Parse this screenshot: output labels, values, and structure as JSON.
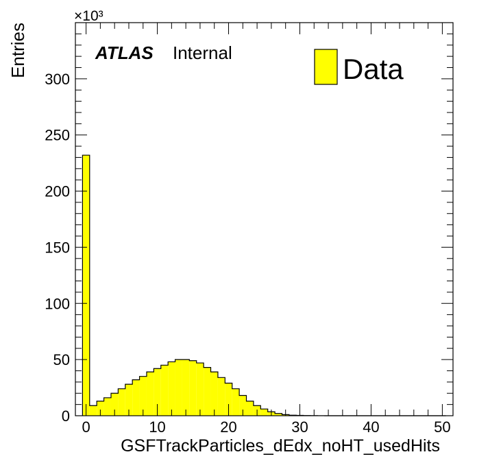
{
  "chart_data": {
    "type": "bar",
    "title": "",
    "xlabel": "GSFTrackParticles_dEdx_noHT_usedHits",
    "ylabel": "Entries",
    "y_multiplier": "×10³",
    "xlim": [
      -1.5,
      51.5
    ],
    "ylim": [
      0,
      350
    ],
    "x_ticks": [
      "0",
      "10",
      "20",
      "30",
      "40",
      "50"
    ],
    "y_ticks": [
      "0",
      "50",
      "100",
      "150",
      "200",
      "250",
      "300"
    ],
    "bin_width": 1,
    "bin_edges_start": -0.5,
    "values": [
      232,
      9,
      13,
      16,
      20,
      24,
      28,
      32,
      35,
      39,
      42,
      45,
      48,
      50,
      50,
      49,
      47,
      43,
      39,
      34,
      29,
      24,
      18,
      13,
      9,
      6,
      3.5,
      2,
      1,
      0.5,
      0.3,
      0.2,
      0.1,
      0.05,
      0,
      0,
      0,
      0,
      0,
      0,
      0,
      0,
      0,
      0,
      0,
      0,
      0,
      0,
      0,
      0,
      0
    ],
    "series": [
      {
        "name": "Data",
        "color": "#ffff00"
      }
    ],
    "legend_position": "top-right",
    "grid": false,
    "annotation": {
      "experiment": "ATLAS",
      "status": "Internal"
    }
  }
}
